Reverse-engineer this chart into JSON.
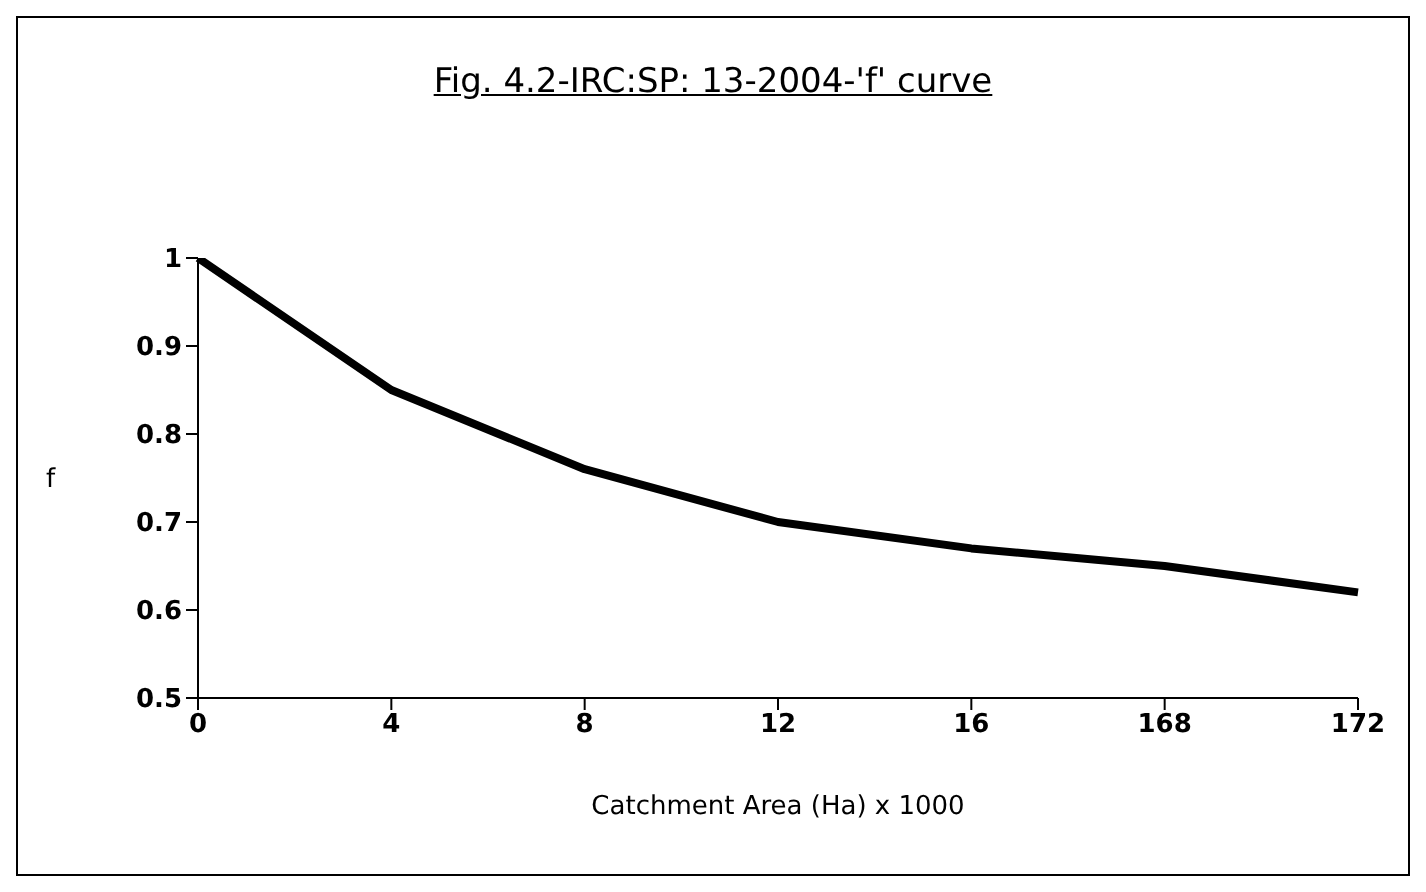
{
  "chart_data": {
    "type": "line",
    "title": "Fig. 4.2-IRC:SP: 13-2004-'f' curve",
    "xlabel": "Catchment Area (Ha) x 1000",
    "ylabel": "f",
    "categories": [
      "0",
      "4",
      "8",
      "12",
      "16",
      "168",
      "172"
    ],
    "series": [
      {
        "color": "#000000",
        "values": [
          1,
          0.85,
          0.76,
          0.7,
          0.67,
          0.65,
          0.62
        ]
      }
    ],
    "ylim": [
      0.5,
      1
    ],
    "yticks": [
      0.5,
      0.6,
      0.7,
      0.8,
      0.9,
      1
    ],
    "grid": false,
    "legend": false,
    "marker": "none",
    "line_style": "solid"
  }
}
